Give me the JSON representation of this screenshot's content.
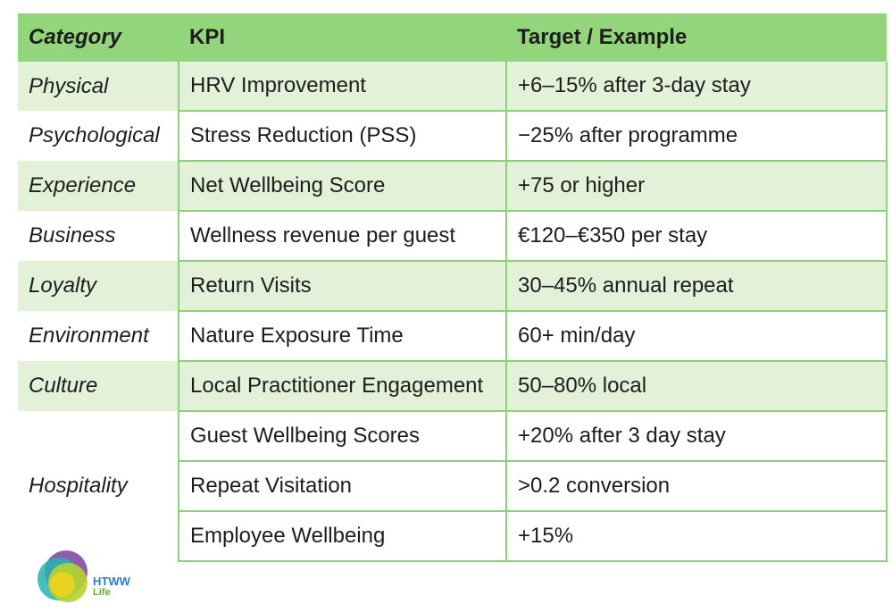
{
  "table": {
    "headers": {
      "category": "Category",
      "kpi": "KPI",
      "target": "Target / Example"
    },
    "rows": [
      {
        "category": "Physical",
        "kpi": "HRV Improvement",
        "target": "+6–15% after 3-day stay"
      },
      {
        "category": "Psychological",
        "kpi": "Stress Reduction (PSS)",
        "target": "−25% after programme"
      },
      {
        "category": "Experience",
        "kpi": "Net Wellbeing Score",
        "target": "+75 or higher"
      },
      {
        "category": "Business",
        "kpi": "Wellness revenue per guest",
        "target": "€120–€350 per stay"
      },
      {
        "category": "Loyalty",
        "kpi": "Return Visits",
        "target": "30–45% annual repeat"
      },
      {
        "category": "Environment",
        "kpi": "Nature Exposure Time",
        "target": "60+ min/day"
      },
      {
        "category": "Culture",
        "kpi": "Local Practitioner Engagement",
        "target": "50–80% local"
      }
    ],
    "hospitality": {
      "category": "Hospitality",
      "rows": [
        {
          "kpi": "Guest Wellbeing Scores",
          "target": "+20% after 3 day stay"
        },
        {
          "kpi": "Repeat Visitation",
          "target": ">0.2 conversion"
        },
        {
          "kpi": "Employee Wellbeing",
          "target": "+15%"
        }
      ]
    }
  },
  "logo": {
    "line1": "HTWW",
    "line2": "Life",
    "colors": {
      "purple": "#7b3fa0",
      "teal": "#27b3b0",
      "lime": "#b9d32c",
      "yellow": "#f2d21b",
      "blue": "#2a7fc4"
    }
  },
  "colors": {
    "header_bg": "#92d57a",
    "shade_bg": "#e2f1d8",
    "border": "#8ed07a"
  }
}
